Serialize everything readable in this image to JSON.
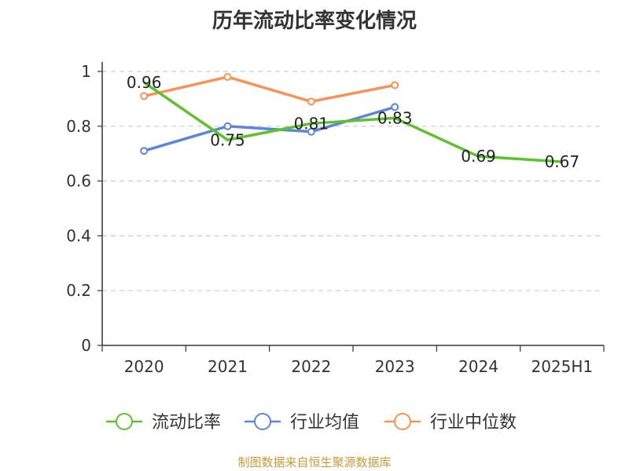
{
  "title": "历年流动比率变化情况",
  "footer": "制图数据来自恒生聚源数据库",
  "chart_data": {
    "type": "line",
    "title": "历年流动比率变化情况",
    "categories": [
      "2020",
      "2021",
      "2022",
      "2023",
      "2024",
      "2025H1"
    ],
    "ylim": [
      0,
      1
    ],
    "yticks": [
      0,
      0.2,
      0.4,
      0.6,
      0.8,
      1
    ],
    "ytick_labels": [
      "0",
      "0.2",
      "0.4",
      "0.6",
      "0.8",
      "1"
    ],
    "grid": true,
    "legend_position": "bottom",
    "series": [
      {
        "name": "流动比率",
        "color": "#5dc22b",
        "values": [
          0.96,
          0.75,
          0.81,
          0.83,
          0.69,
          0.67
        ],
        "labels": [
          "0.96",
          "0.75",
          "0.81",
          "0.83",
          "0.69",
          "0.67"
        ],
        "markers": false
      },
      {
        "name": "行业均值",
        "color": "#5b86dc",
        "values": [
          0.71,
          0.8,
          0.78,
          0.87,
          null,
          null
        ],
        "markers": true
      },
      {
        "name": "行业中位数",
        "color": "#f79356",
        "values": [
          0.91,
          0.98,
          0.89,
          0.95,
          null,
          null
        ],
        "markers": true
      }
    ]
  }
}
